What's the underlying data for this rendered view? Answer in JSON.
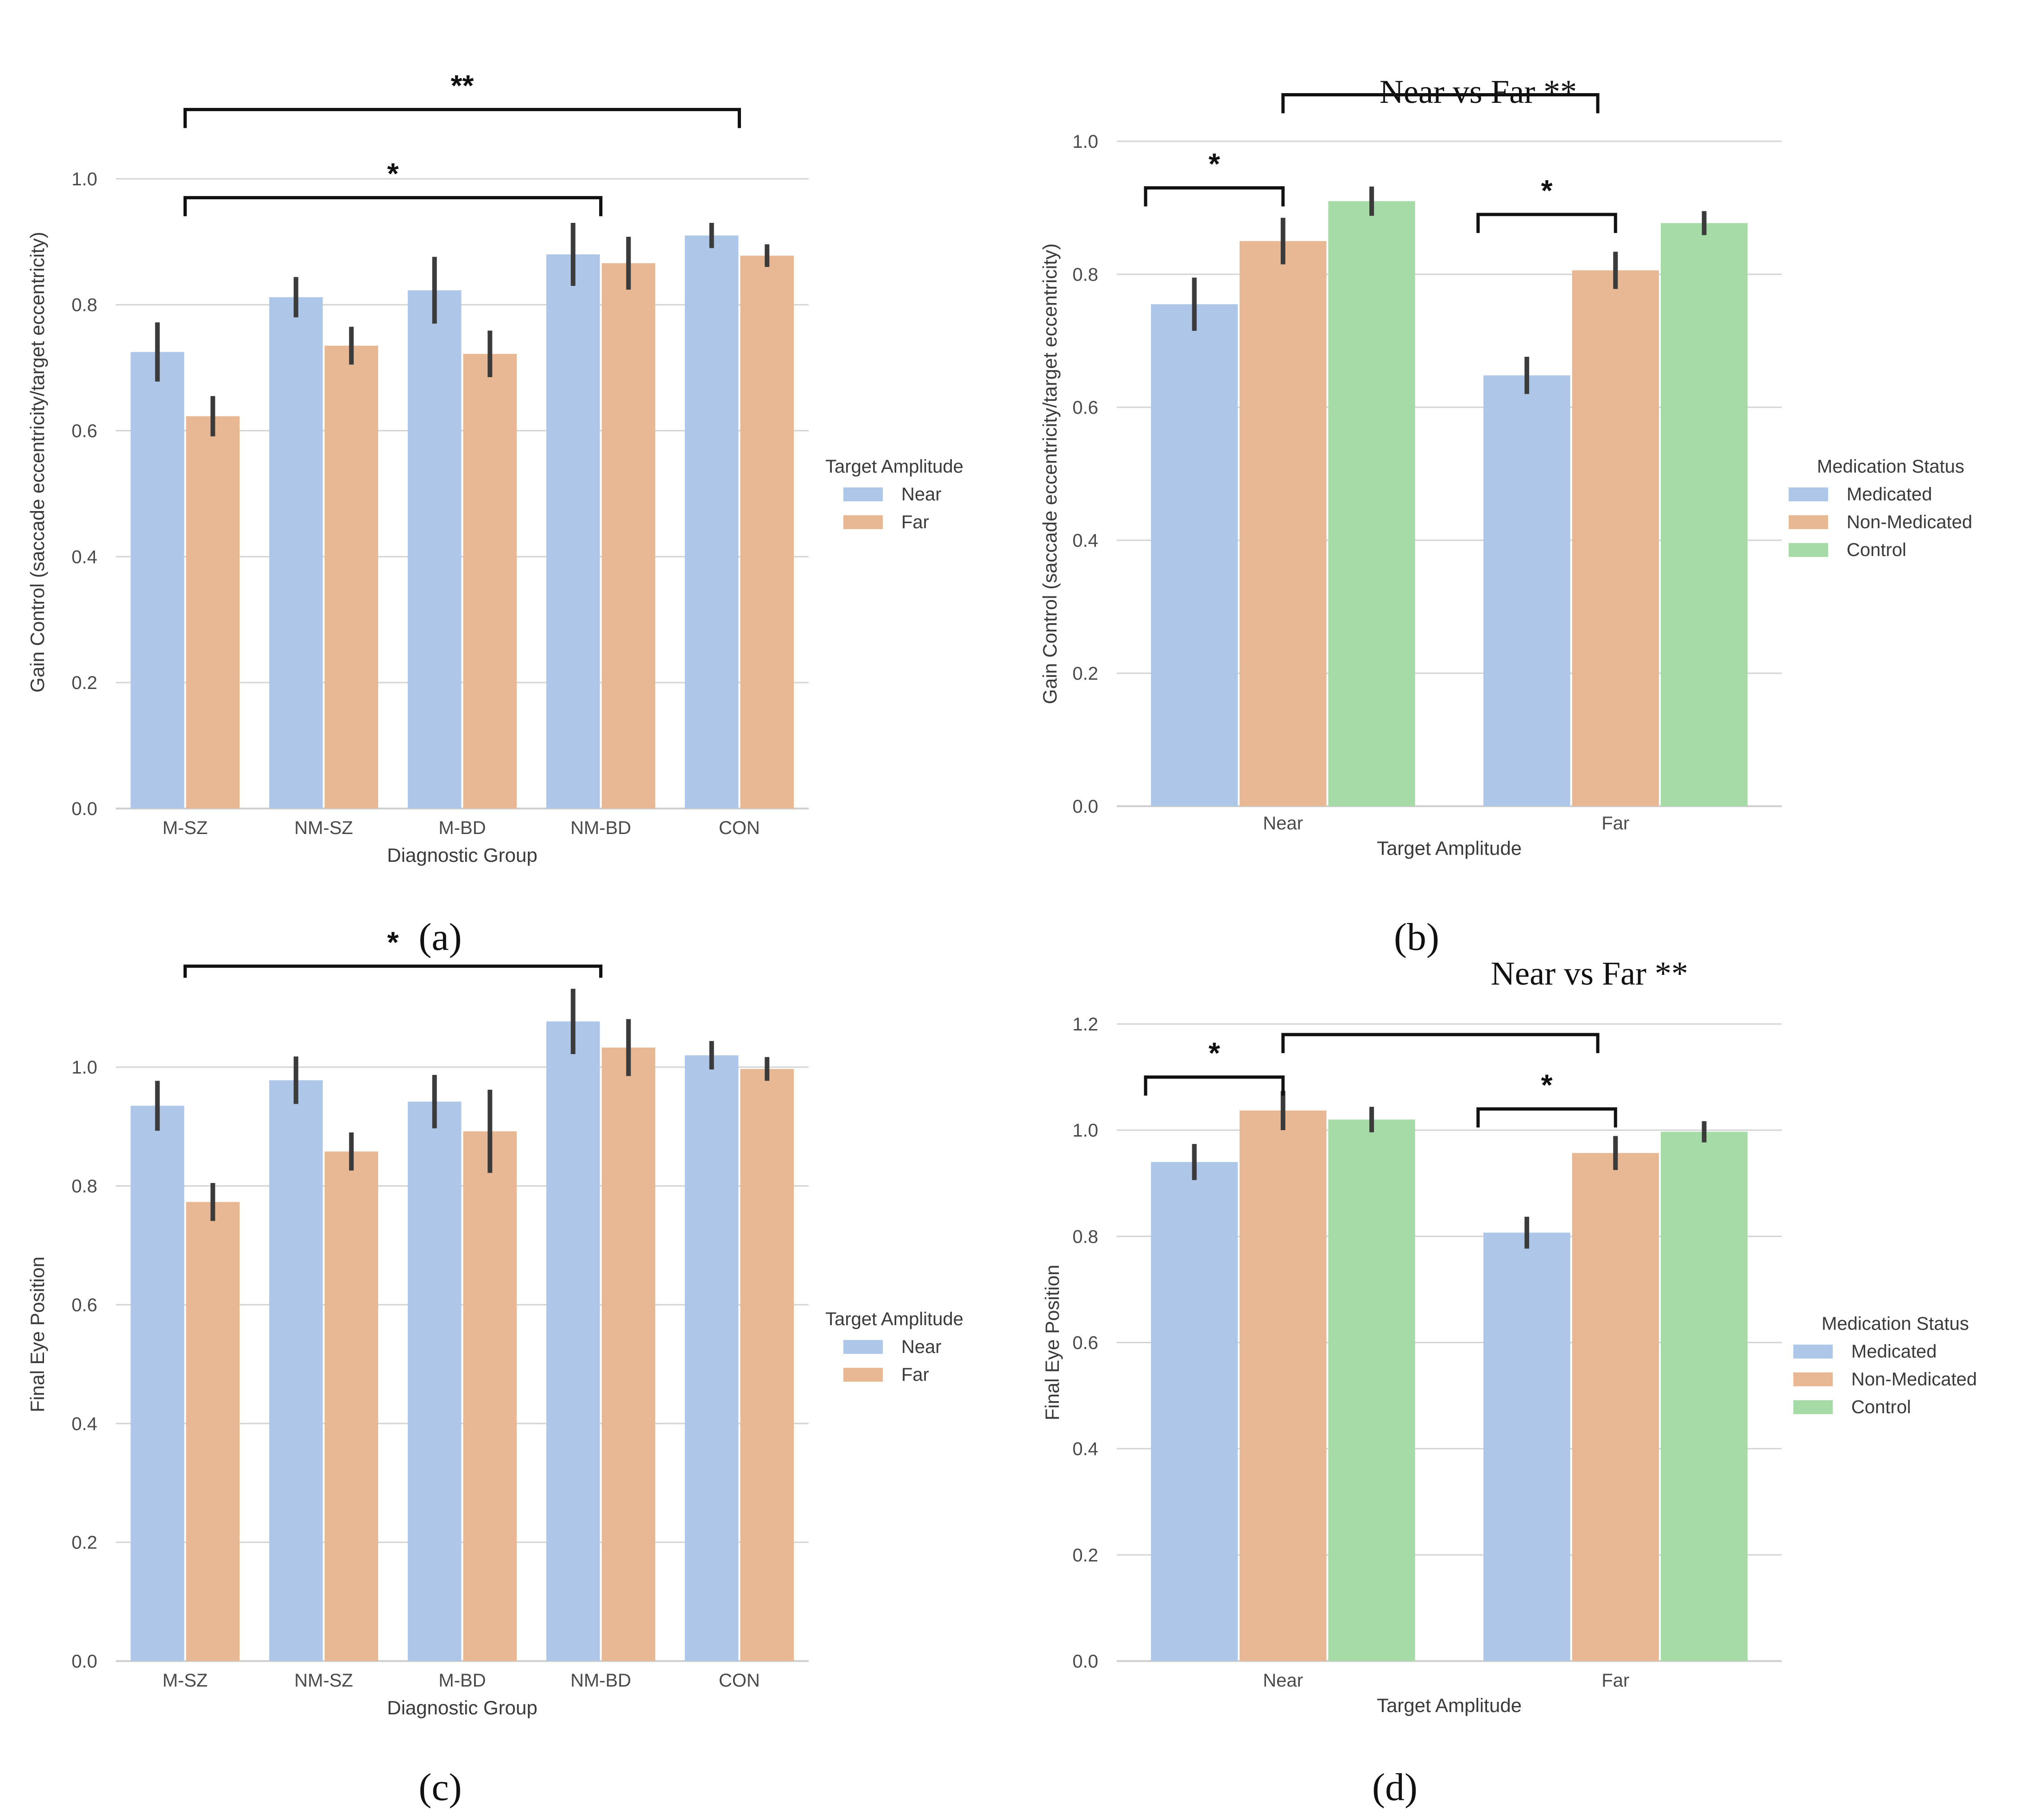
{
  "colors": {
    "near": "#aec7e8",
    "far": "#e8b794",
    "medicated": "#aec7e8",
    "non_medicated": "#e8b794",
    "control": "#a6dba8"
  },
  "chart_data": [
    {
      "id": "a",
      "type": "bar",
      "caption": "(a)",
      "xlabel": "Diagnostic Group",
      "ylabel": "Gain Control (saccade eccentricity/target eccentricity)",
      "ylim": [
        0,
        1.1
      ],
      "yticks": [
        "0.0",
        "0.2",
        "0.4",
        "0.6",
        "0.8",
        "1.0"
      ],
      "categories": [
        "M-SZ",
        "NM-SZ",
        "M-BD",
        "NM-BD",
        "CON"
      ],
      "legend_title": "Target Amplitude",
      "legend_position": "right",
      "series": [
        {
          "name": "Near",
          "color_key": "near",
          "values": [
            0.725,
            0.812,
            0.823,
            0.88,
            0.91
          ],
          "err": [
            0.047,
            0.032,
            0.053,
            0.05,
            0.02
          ]
        },
        {
          "name": "Far",
          "color_key": "far",
          "values": [
            0.623,
            0.735,
            0.722,
            0.866,
            0.878
          ],
          "err": [
            0.032,
            0.03,
            0.037,
            0.042,
            0.018
          ]
        }
      ],
      "annotations": [
        {
          "label": "**",
          "from": 0,
          "to": 4,
          "level": 1.11
        },
        {
          "label": "*",
          "from": 0,
          "to": 3,
          "level": 0.97
        }
      ]
    },
    {
      "id": "b",
      "type": "bar",
      "caption": "(b)",
      "heading": "Near  vs Far **",
      "xlabel": "Target Amplitude",
      "ylabel": "Gain Control (saccade eccentricity/target eccentricity)",
      "ylim": [
        0,
        1.0
      ],
      "yticks": [
        "0.0",
        "0.2",
        "0.4",
        "0.6",
        "0.8",
        "1.0"
      ],
      "categories": [
        "Near",
        "Far"
      ],
      "legend_title": "Medication Status",
      "legend_position": "right",
      "series": [
        {
          "name": "Medicated",
          "color_key": "medicated",
          "values": [
            0.755,
            0.648
          ],
          "err": [
            0.04,
            0.028
          ]
        },
        {
          "name": "Non-Medicated",
          "color_key": "non_medicated",
          "values": [
            0.85,
            0.806
          ],
          "err": [
            0.035,
            0.028
          ]
        },
        {
          "name": "Control",
          "color_key": "control",
          "values": [
            0.91,
            0.877
          ],
          "err": [
            0.022,
            0.018
          ]
        }
      ],
      "annotations": [
        {
          "label": "*",
          "group": 0,
          "from": 0,
          "to": 1,
          "level": 0.93
        },
        {
          "label": "*",
          "group": 1,
          "from": 0,
          "to": 1,
          "level": 0.89
        }
      ],
      "group_bracket": {
        "level": 1.07
      }
    },
    {
      "id": "c",
      "type": "bar",
      "caption": "(c)",
      "xlabel": "Diagnostic Group",
      "ylabel": "Final Eye Position",
      "ylim": [
        0,
        1.1
      ],
      "yticks": [
        "0.0",
        "0.2",
        "0.4",
        "0.6",
        "0.8",
        "1.0"
      ],
      "categories": [
        "M-SZ",
        "NM-SZ",
        "M-BD",
        "NM-BD",
        "CON"
      ],
      "legend_title": "Target Amplitude",
      "legend_position": "right",
      "series": [
        {
          "name": "Near",
          "color_key": "near",
          "values": [
            0.935,
            0.978,
            0.942,
            1.077,
            1.02
          ],
          "err": [
            0.042,
            0.04,
            0.045,
            0.055,
            0.024
          ]
        },
        {
          "name": "Far",
          "color_key": "far",
          "values": [
            0.773,
            0.858,
            0.892,
            1.033,
            0.997
          ],
          "err": [
            0.032,
            0.032,
            0.07,
            0.048,
            0.02
          ]
        }
      ],
      "annotations": [
        {
          "label": "*",
          "from": 0,
          "to": 3,
          "level": 1.17
        }
      ]
    },
    {
      "id": "d",
      "type": "bar",
      "caption": "(d)",
      "heading": "Near  vs Far **",
      "xlabel": "Target Amplitude",
      "ylabel": "Final Eye Position",
      "ylim": [
        0,
        1.2
      ],
      "yticks": [
        "0.0",
        "0.2",
        "0.4",
        "0.6",
        "0.8",
        "1.0",
        "1.2"
      ],
      "categories": [
        "Near",
        "Far"
      ],
      "legend_title": "Medication Status",
      "legend_position": "right",
      "series": [
        {
          "name": "Medicated",
          "color_key": "medicated",
          "values": [
            0.94,
            0.807
          ],
          "err": [
            0.034,
            0.03
          ]
        },
        {
          "name": "Non-Medicated",
          "color_key": "non_medicated",
          "values": [
            1.037,
            0.957
          ],
          "err": [
            0.037,
            0.032
          ]
        },
        {
          "name": "Control",
          "color_key": "control",
          "values": [
            1.02,
            0.997
          ],
          "err": [
            0.024,
            0.02
          ]
        }
      ],
      "annotations": [
        {
          "label": "*",
          "group": 0,
          "from": 0,
          "to": 1,
          "level": 1.1
        },
        {
          "label": "*",
          "group": 1,
          "from": 0,
          "to": 1,
          "level": 1.04
        }
      ],
      "group_bracket": {
        "level": 1.18
      }
    }
  ]
}
